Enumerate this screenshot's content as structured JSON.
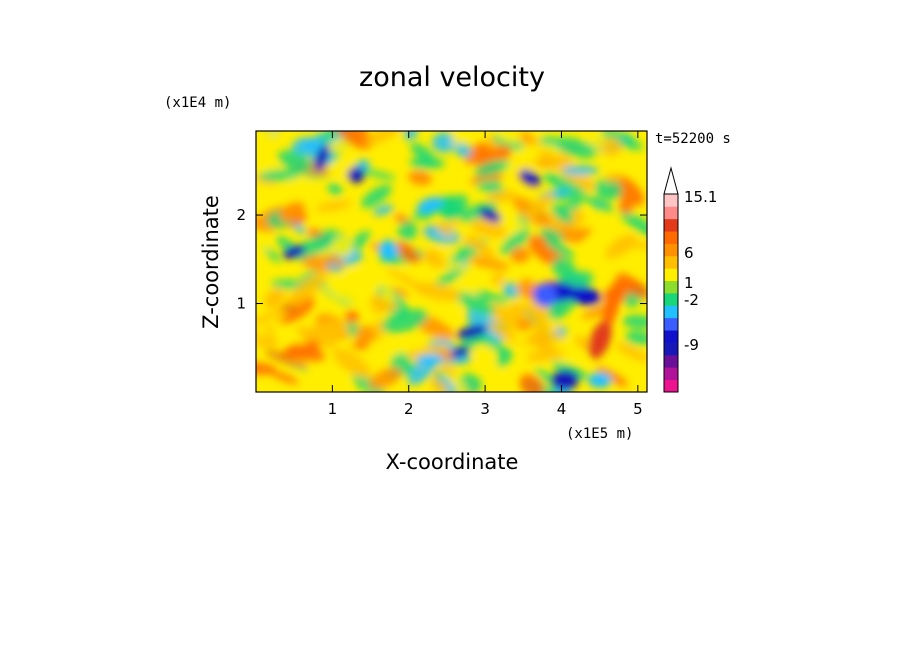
{
  "chart_data": {
    "type": "heatmap",
    "title": "zonal velocity",
    "xlabel": "X-coordinate",
    "ylabel": "Z-coordinate",
    "x_scale_label": "(x1E5 m)",
    "y_scale_label": "(x1E4 m)",
    "time_label": "t=52200 s",
    "x_ticks": [
      "1",
      "2",
      "3",
      "4",
      "5"
    ],
    "y_ticks": [
      "1",
      "2"
    ],
    "xlim": [
      0,
      5.12
    ],
    "ylim": [
      0,
      2.95
    ],
    "colorbar": {
      "labels": [
        "15.1",
        "6",
        "1",
        "-2",
        "-9"
      ],
      "bands": [
        "#ee1490",
        "#b0139a",
        "#6a0f98",
        "#1818b8",
        "#1111cc",
        "#3b5cff",
        "#22c0ff",
        "#19d67a",
        "#8ddd2e",
        "#ffee00",
        "#ffbf00",
        "#ff9000",
        "#ff6a00",
        "#e23a1a",
        "#ff8a8a",
        "#ffc4c4"
      ]
    }
  }
}
